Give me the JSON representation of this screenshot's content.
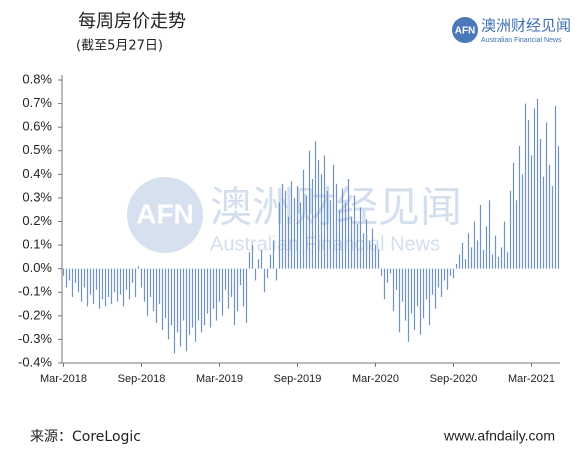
{
  "logo": {
    "mark": "AFN",
    "name": "澳洲财经见闻",
    "english": "Australian Financial News"
  },
  "footer": {
    "source": "来源：CoreLogic",
    "website": "www.afndaily.com"
  },
  "chart_data": {
    "type": "bar",
    "title": "每周房价走势",
    "subtitle": "(截至5月27日)",
    "color": "#6f93c2",
    "ylim": [
      -0.4,
      0.8
    ],
    "yticks": [
      {
        "value": -0.4,
        "label": "-0.4%"
      },
      {
        "value": -0.3,
        "label": "-0.3%"
      },
      {
        "value": -0.2,
        "label": "-0.2%"
      },
      {
        "value": -0.1,
        "label": "-0.1%"
      },
      {
        "value": 0,
        "label": "0.0%"
      },
      {
        "value": 0.1,
        "label": "0.1%"
      },
      {
        "value": 0.2,
        "label": "0.2%"
      },
      {
        "value": 0.3,
        "label": "0.3%"
      },
      {
        "value": 0.4,
        "label": "0.4%"
      },
      {
        "value": 0.5,
        "label": "0.5%"
      },
      {
        "value": 0.6,
        "label": "0.6%"
      },
      {
        "value": 0.7,
        "label": "0.7%"
      },
      {
        "value": 0.8,
        "label": "0.8%"
      }
    ],
    "categories": [
      "Mar-2018",
      null,
      null,
      null,
      null,
      null,
      null,
      null,
      null,
      null,
      null,
      null,
      null,
      null,
      null,
      null,
      null,
      null,
      null,
      null,
      null,
      null,
      null,
      null,
      null,
      null,
      "Sep-2018",
      null,
      null,
      null,
      null,
      null,
      null,
      null,
      null,
      null,
      null,
      null,
      null,
      null,
      null,
      null,
      null,
      null,
      null,
      null,
      null,
      null,
      null,
      null,
      null,
      null,
      "Mar-2019",
      null,
      null,
      null,
      null,
      null,
      null,
      null,
      null,
      null,
      null,
      null,
      null,
      null,
      null,
      null,
      null,
      null,
      null,
      null,
      null,
      null,
      null,
      null,
      null,
      null,
      "Sep-2019",
      null,
      null,
      null,
      null,
      null,
      null,
      null,
      null,
      null,
      null,
      null,
      null,
      null,
      null,
      null,
      null,
      null,
      null,
      null,
      null,
      null,
      null,
      null,
      null,
      null,
      "Mar-2020",
      null,
      null,
      null,
      null,
      null,
      null,
      null,
      null,
      null,
      null,
      null,
      null,
      null,
      null,
      null,
      null,
      null,
      null,
      null,
      null,
      null,
      null,
      null,
      null,
      null,
      "Sep-2020",
      null,
      null,
      null,
      null,
      null,
      null,
      null,
      null,
      null,
      null,
      null,
      null,
      null,
      null,
      null,
      null,
      null,
      null,
      null,
      null,
      null,
      null,
      null,
      null,
      null,
      "Mar-2021",
      null,
      null,
      null,
      null,
      null,
      null,
      null,
      null,
      null
    ],
    "values": [
      -0.03,
      -0.08,
      -0.05,
      -0.12,
      -0.06,
      -0.1,
      -0.14,
      -0.08,
      -0.16,
      -0.11,
      -0.15,
      -0.09,
      -0.17,
      -0.13,
      -0.16,
      -0.12,
      -0.15,
      -0.1,
      -0.14,
      -0.11,
      -0.16,
      -0.09,
      -0.13,
      -0.06,
      -0.12,
      0.01,
      -0.08,
      -0.14,
      -0.2,
      -0.12,
      -0.18,
      -0.23,
      -0.15,
      -0.26,
      -0.21,
      -0.3,
      -0.24,
      -0.36,
      -0.27,
      -0.33,
      -0.22,
      -0.35,
      -0.28,
      -0.25,
      -0.31,
      -0.22,
      -0.27,
      -0.24,
      -0.19,
      -0.25,
      -0.17,
      -0.22,
      -0.14,
      -0.2,
      -0.09,
      -0.17,
      -0.12,
      -0.24,
      -0.18,
      -0.07,
      -0.16,
      -0.23,
      0.07,
      0.1,
      -0.05,
      0.04,
      0.08,
      -0.1,
      -0.04,
      0.06,
      0.12,
      -0.05,
      0.28,
      0.36,
      0.33,
      0.22,
      0.37,
      0.3,
      0.35,
      0.28,
      0.42,
      0.31,
      0.5,
      0.38,
      0.54,
      0.46,
      0.4,
      0.48,
      0.33,
      0.29,
      0.44,
      0.36,
      0.25,
      0.34,
      0.28,
      0.38,
      0.22,
      0.31,
      0.19,
      0.26,
      0.15,
      0.21,
      0.12,
      0.17,
      0.1,
      0.08,
      -0.03,
      -0.13,
      -0.06,
      -0.02,
      -0.18,
      -0.09,
      -0.27,
      -0.14,
      -0.22,
      -0.31,
      -0.19,
      -0.26,
      -0.16,
      -0.28,
      -0.21,
      -0.13,
      -0.24,
      -0.11,
      -0.17,
      -0.08,
      -0.12,
      -0.05,
      -0.09,
      -0.03,
      -0.04,
      0.02,
      0.06,
      0.11,
      0.04,
      0.15,
      0.09,
      0.2,
      0.12,
      0.27,
      0.08,
      0.18,
      0.29,
      0.06,
      0.14,
      0.05,
      0.09,
      0.2,
      0.07,
      0.33,
      0.45,
      0.29,
      0.52,
      0.4,
      0.7,
      0.63,
      0.48,
      0.68,
      0.72,
      0.55,
      0.39,
      0.62,
      0.44,
      0.35,
      0.69,
      0.52
    ]
  }
}
